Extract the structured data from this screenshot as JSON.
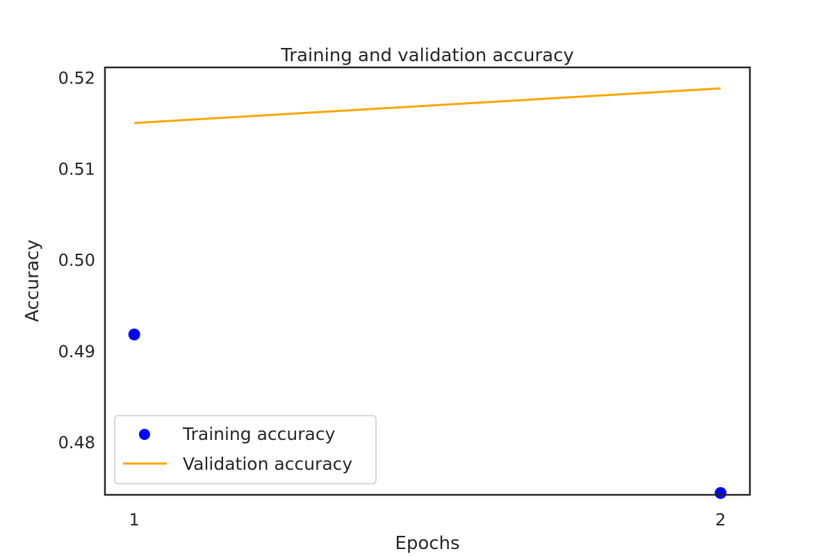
{
  "chart_data": {
    "type": "line",
    "title": "Training and validation accuracy",
    "xlabel": "Epochs",
    "ylabel": "Accuracy",
    "x": [
      1,
      2
    ],
    "xticks": [
      1,
      2
    ],
    "xtick_labels": [
      "1",
      "2"
    ],
    "xlim": [
      0.95,
      2.05
    ],
    "ylim": [
      0.4742,
      0.5211
    ],
    "yticks": [
      0.48,
      0.49,
      0.5,
      0.51,
      0.52
    ],
    "ytick_labels": [
      "0.48",
      "0.49",
      "0.50",
      "0.51",
      "0.52"
    ],
    "grid": false,
    "legend_position": "lower-left",
    "series": [
      {
        "name": "Training accuracy",
        "style": "scatter",
        "color": "#0000ff",
        "values": [
          0.4918,
          0.4744
        ]
      },
      {
        "name": "Validation accuracy",
        "style": "line",
        "color": "#ffa500",
        "values": [
          0.515,
          0.5188
        ]
      }
    ]
  }
}
